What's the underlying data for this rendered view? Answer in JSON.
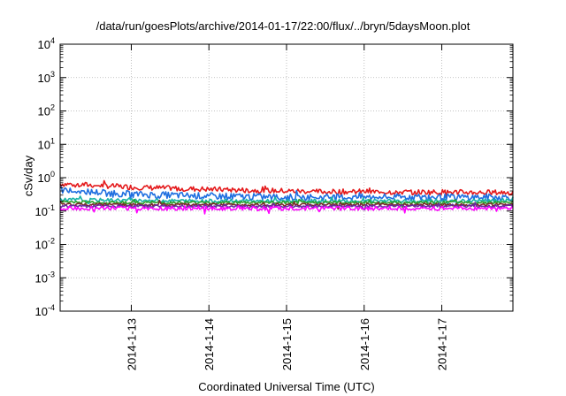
{
  "chart_data": {
    "type": "line",
    "title": "/data/run/goesPlots/archive/2014-01-17/22:00/flux/../bryn/5daysMoon.plot",
    "xlabel": "Coordinated Universal Time (UTC)",
    "ylabel": "cSv/day",
    "yscale": "log",
    "ylim": [
      0.0001,
      10000
    ],
    "xlim": [
      "2014-01-12 02:00",
      "2014-01-17 22:00"
    ],
    "grid": true,
    "legend": "none",
    "y_ticks": [
      {
        "base": "10",
        "exp": "-4"
      },
      {
        "base": "10",
        "exp": "-3"
      },
      {
        "base": "10",
        "exp": "-2"
      },
      {
        "base": "10",
        "exp": "-1"
      },
      {
        "base": "10",
        "exp": "0"
      },
      {
        "base": "10",
        "exp": "1"
      },
      {
        "base": "10",
        "exp": "2"
      },
      {
        "base": "10",
        "exp": "3"
      },
      {
        "base": "10",
        "exp": "4"
      }
    ],
    "x_ticks": [
      "2014-1-13",
      "2014-1-14",
      "2014-1-15",
      "2014-1-16",
      "2014-1-17"
    ],
    "series": [
      {
        "color": "#e41a1c",
        "x": [
          "2014-01-12 02:00",
          "2014-01-12 12:00",
          "2014-01-13 00:00",
          "2014-01-13 12:00",
          "2014-01-14 00:00",
          "2014-01-14 12:00",
          "2014-01-15 00:00",
          "2014-01-15 12:00",
          "2014-01-16 00:00",
          "2014-01-16 12:00",
          "2014-01-17 00:00",
          "2014-01-17 12:00",
          "2014-01-17 22:00"
        ],
        "values": [
          0.65,
          0.6,
          0.52,
          0.48,
          0.45,
          0.42,
          0.4,
          0.38,
          0.38,
          0.37,
          0.37,
          0.36,
          0.36
        ]
      },
      {
        "color": "#1f6fe0",
        "x": [
          "2014-01-12 02:00",
          "2014-01-12 12:00",
          "2014-01-13 00:00",
          "2014-01-13 12:00",
          "2014-01-14 00:00",
          "2014-01-14 12:00",
          "2014-01-15 00:00",
          "2014-01-15 12:00",
          "2014-01-16 00:00",
          "2014-01-16 12:00",
          "2014-01-17 00:00",
          "2014-01-17 12:00",
          "2014-01-17 22:00"
        ],
        "values": [
          0.42,
          0.37,
          0.32,
          0.3,
          0.28,
          0.27,
          0.26,
          0.26,
          0.26,
          0.26,
          0.26,
          0.26,
          0.26
        ]
      },
      {
        "color": "#17b3a6",
        "x": [
          "2014-01-12 02:00",
          "2014-01-13 00:00",
          "2014-01-14 00:00",
          "2014-01-15 00:00",
          "2014-01-16 00:00",
          "2014-01-17 00:00",
          "2014-01-17 22:00"
        ],
        "values": [
          0.22,
          0.21,
          0.2,
          0.2,
          0.2,
          0.2,
          0.21
        ]
      },
      {
        "color": "#2ca02c",
        "x": [
          "2014-01-12 02:00",
          "2014-01-13 00:00",
          "2014-01-14 00:00",
          "2014-01-15 00:00",
          "2014-01-16 00:00",
          "2014-01-17 00:00",
          "2014-01-17 22:00"
        ],
        "values": [
          0.19,
          0.18,
          0.18,
          0.18,
          0.18,
          0.18,
          0.18
        ]
      },
      {
        "color": "#7b2a2a",
        "x": [
          "2014-01-12 02:00",
          "2014-01-13 00:00",
          "2014-01-14 00:00",
          "2014-01-15 00:00",
          "2014-01-16 00:00",
          "2014-01-17 00:00",
          "2014-01-17 22:00"
        ],
        "values": [
          0.16,
          0.155,
          0.155,
          0.155,
          0.155,
          0.155,
          0.155
        ]
      },
      {
        "color": "#6a2aa0",
        "x": [
          "2014-01-12 02:00",
          "2014-01-13 00:00",
          "2014-01-14 00:00",
          "2014-01-15 00:00",
          "2014-01-16 00:00",
          "2014-01-17 00:00",
          "2014-01-17 22:00"
        ],
        "values": [
          0.14,
          0.14,
          0.14,
          0.14,
          0.14,
          0.14,
          0.14
        ]
      },
      {
        "color": "#ff00ff",
        "x": [
          "2014-01-12 02:00",
          "2014-01-13 00:00",
          "2014-01-14 00:00",
          "2014-01-15 00:00",
          "2014-01-16 00:00",
          "2014-01-17 00:00",
          "2014-01-17 22:00"
        ],
        "values": [
          0.12,
          0.12,
          0.12,
          0.12,
          0.12,
          0.12,
          0.12
        ]
      }
    ]
  }
}
